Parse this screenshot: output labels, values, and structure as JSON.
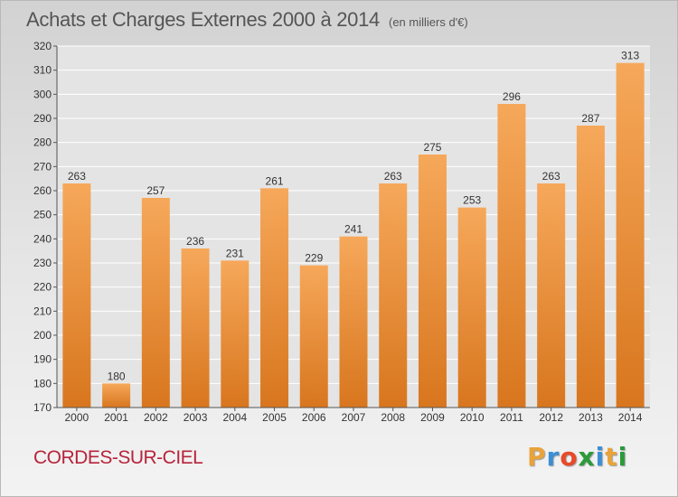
{
  "title": {
    "main": "Achats et Charges Externes 2000 à 2014",
    "unit": "(en milliers d'€)"
  },
  "footer": {
    "commune": "CORDES-SUR-CIEL",
    "logo": "Proxiti",
    "logo_colors": [
      "#e8a33b",
      "#3b8fd6",
      "#e84a2a",
      "#2a9a3a",
      "#3b8fd6",
      "#e8a33b",
      "#2a9a3a"
    ]
  },
  "colors": {
    "bar_top": "#f6a85a",
    "bar_bottom": "#d8761e",
    "grid": "#ffffff",
    "plot_bg": "#e4e4e4"
  },
  "chart_data": {
    "type": "bar",
    "title": "Achats et Charges Externes 2000 à 2014",
    "subtitle": "(en milliers d'€)",
    "xlabel": "",
    "ylabel": "",
    "categories": [
      "2000",
      "2001",
      "2002",
      "2003",
      "2004",
      "2005",
      "2006",
      "2007",
      "2008",
      "2009",
      "2010",
      "2011",
      "2012",
      "2013",
      "2014"
    ],
    "values": [
      263,
      180,
      257,
      236,
      231,
      261,
      229,
      241,
      263,
      275,
      253,
      296,
      263,
      287,
      313
    ],
    "ylim": [
      170,
      320
    ],
    "yticks": [
      170,
      180,
      190,
      200,
      210,
      220,
      230,
      240,
      250,
      260,
      270,
      280,
      290,
      300,
      310,
      320
    ],
    "grid": true,
    "data_labels": true
  }
}
